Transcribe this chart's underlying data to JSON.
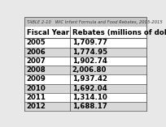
{
  "title": "TABLE 2-10   WIC Infant Formula and Food Rebates, 2005-2015",
  "col1_header": "Fiscal Year",
  "col2_header": "Rebates (millions of dollars)",
  "rows": [
    [
      "2005",
      "1,709.77"
    ],
    [
      "2006",
      "1,774.95"
    ],
    [
      "2007",
      "1,902.74"
    ],
    [
      "2008",
      "2,006.80"
    ],
    [
      "2009",
      "1,937.42"
    ],
    [
      "2010",
      "1,692.04"
    ],
    [
      "2011",
      "1,314.10"
    ],
    [
      "2012",
      "1,688.17"
    ]
  ],
  "header_bg": "#ffffff",
  "odd_row_bg": "#ffffff",
  "even_row_bg": "#d8d8d8",
  "border_color": "#555555",
  "title_color": "#888888",
  "title_fontsize": 3.8,
  "header_fontsize": 6.2,
  "cell_fontsize": 6.2,
  "fig_bg": "#e8e8e8",
  "table_bg": "#ffffff",
  "title_bar_bg": "#c8c8c8"
}
